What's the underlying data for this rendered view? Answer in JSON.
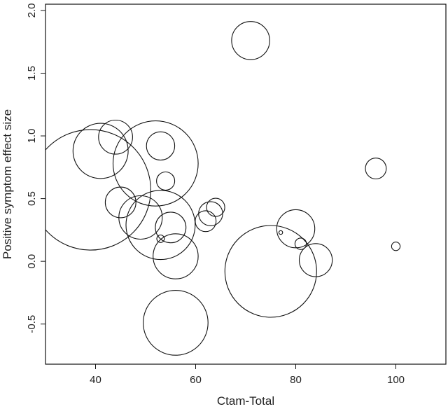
{
  "chart_data": {
    "type": "scatter",
    "title": "",
    "xlabel": "Ctam-Total",
    "ylabel": "Positive symptom effect size",
    "xlim": [
      30,
      110
    ],
    "ylim": [
      -0.82,
      2.05
    ],
    "xticks": [
      40,
      60,
      80,
      100
    ],
    "yticks": [
      -0.5,
      0.0,
      0.5,
      1.0,
      1.5,
      2.0
    ],
    "xtick_labels": [
      "40",
      "60",
      "80",
      "100"
    ],
    "ytick_labels": [
      "-0.5",
      "0.0",
      "0.5",
      "1.0",
      "1.5",
      "2.0"
    ],
    "grid": false,
    "encoding": "bubble area represents study weight",
    "points": [
      {
        "x": 39,
        "y": 0.57,
        "weight": 100
      },
      {
        "x": 41,
        "y": 0.88,
        "weight": 21
      },
      {
        "x": 44,
        "y": 0.99,
        "weight": 8
      },
      {
        "x": 45,
        "y": 0.47,
        "weight": 6.5
      },
      {
        "x": 49,
        "y": 0.35,
        "weight": 13
      },
      {
        "x": 52,
        "y": 0.78,
        "weight": 50
      },
      {
        "x": 53,
        "y": 0.92,
        "weight": 5.5
      },
      {
        "x": 53,
        "y": 0.29,
        "weight": 33
      },
      {
        "x": 53,
        "y": 0.18,
        "weight": 0.4
      },
      {
        "x": 54,
        "y": 0.64,
        "weight": 2.3
      },
      {
        "x": 55,
        "y": 0.27,
        "weight": 6.5
      },
      {
        "x": 56,
        "y": 0.04,
        "weight": 14
      },
      {
        "x": 56,
        "y": -0.49,
        "weight": 29
      },
      {
        "x": 62,
        "y": 0.32,
        "weight": 3.0
      },
      {
        "x": 63,
        "y": 0.38,
        "weight": 4.0
      },
      {
        "x": 64,
        "y": 0.43,
        "weight": 2.3
      },
      {
        "x": 71,
        "y": 1.76,
        "weight": 10
      },
      {
        "x": 75,
        "y": -0.08,
        "weight": 58
      },
      {
        "x": 77,
        "y": 0.23,
        "weight": 0.1
      },
      {
        "x": 80,
        "y": 0.26,
        "weight": 10
      },
      {
        "x": 81,
        "y": 0.14,
        "weight": 0.9
      },
      {
        "x": 84,
        "y": 0.01,
        "weight": 7.5
      },
      {
        "x": 96,
        "y": 0.74,
        "weight": 3.0
      },
      {
        "x": 100,
        "y": 0.12,
        "weight": 0.5
      }
    ]
  }
}
